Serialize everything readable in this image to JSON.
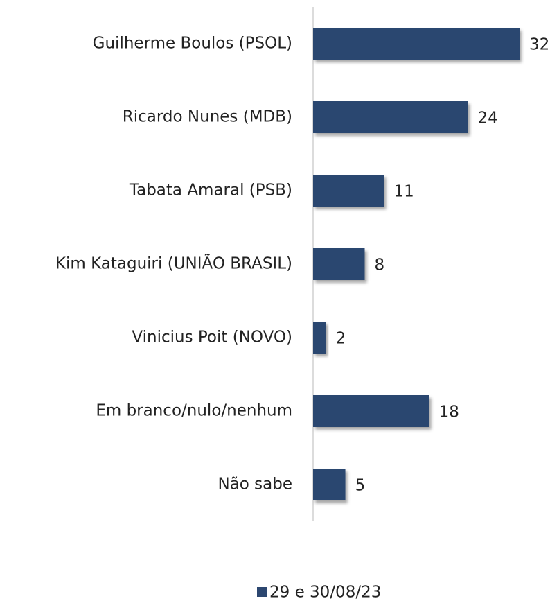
{
  "chart_data": {
    "type": "bar",
    "orientation": "horizontal",
    "categories": [
      "Guilherme Boulos (PSOL)",
      "Ricardo Nunes (MDB)",
      "Tabata Amaral (PSB)",
      "Kim Kataguiri (UNIÃO BRASIL)",
      "Vinicius Poit (NOVO)",
      "Em branco/nulo/nenhum",
      "Não sabe"
    ],
    "series": [
      {
        "name": "29 e 30/08/23",
        "color": "#2c4770",
        "values": [
          32,
          24,
          11,
          8,
          2,
          18,
          5
        ]
      }
    ],
    "legend": "bottom"
  }
}
